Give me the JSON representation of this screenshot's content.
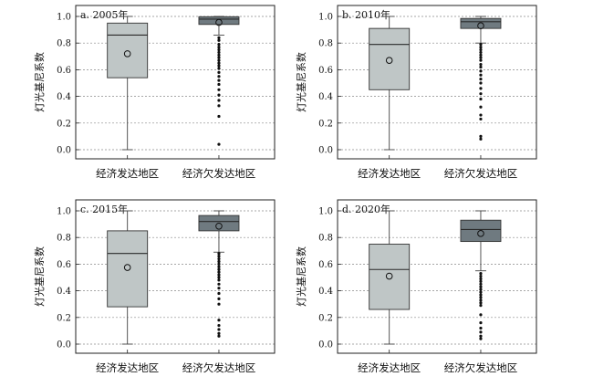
{
  "figure": {
    "ylabel": "灯光基尼系数",
    "categories": [
      "经济发达地区",
      "经济欠发达地区"
    ],
    "colors": {
      "developed": "#bfc6c6",
      "underdeveloped": "#6f7a80",
      "median_line": "#2a2a2a",
      "grid": "#8a8a8a"
    }
  },
  "chart_data": [
    {
      "type": "box",
      "title": "a. 2005年",
      "ylim": [
        0,
        1.0
      ],
      "yticks": [
        "0.0",
        "0.2",
        "0.4",
        "0.6",
        "0.8",
        "1.0"
      ],
      "grid": "horizontal-dashed",
      "categories": [
        "经济发达地区",
        "经济欠发达地区"
      ],
      "series": [
        {
          "whisker_low": 0.0,
          "q1": 0.54,
          "median": 0.86,
          "q3": 0.95,
          "whisker_high": 1.0,
          "mean": 0.72,
          "outliers": []
        },
        {
          "whisker_low": 0.86,
          "q1": 0.94,
          "median": 0.98,
          "q3": 0.998,
          "whisker_high": 1.0,
          "mean": 0.955,
          "outliers": [
            0.84,
            0.82,
            0.79,
            0.77,
            0.75,
            0.73,
            0.71,
            0.69,
            0.67,
            0.65,
            0.63,
            0.61,
            0.58,
            0.55,
            0.52,
            0.49,
            0.45,
            0.41,
            0.37,
            0.33,
            0.25,
            0.04
          ]
        }
      ]
    },
    {
      "type": "box",
      "title": "b. 2010年",
      "ylim": [
        0,
        1.0
      ],
      "yticks": [
        "0.0",
        "0.2",
        "0.4",
        "0.6",
        "0.8",
        "1.0"
      ],
      "grid": "horizontal-dashed",
      "categories": [
        "经济发达地区",
        "经济欠发达地区"
      ],
      "series": [
        {
          "whisker_low": 0.0,
          "q1": 0.45,
          "median": 0.79,
          "q3": 0.91,
          "whisker_high": 1.0,
          "mean": 0.67,
          "outliers": []
        },
        {
          "whisker_low": 0.8,
          "q1": 0.91,
          "median": 0.96,
          "q3": 0.985,
          "whisker_high": 1.0,
          "mean": 0.93,
          "outliers": [
            0.79,
            0.77,
            0.75,
            0.73,
            0.71,
            0.69,
            0.67,
            0.64,
            0.62,
            0.59,
            0.56,
            0.53,
            0.5,
            0.46,
            0.42,
            0.38,
            0.32,
            0.26,
            0.23,
            0.1,
            0.08
          ]
        }
      ]
    },
    {
      "type": "box",
      "title": "c. 2015年",
      "ylim": [
        0,
        1.0
      ],
      "yticks": [
        "0.0",
        "0.2",
        "0.4",
        "0.6",
        "0.8",
        "1.0"
      ],
      "grid": "horizontal-dashed",
      "categories": [
        "经济发达地区",
        "经济欠发达地区"
      ],
      "series": [
        {
          "whisker_low": 0.0,
          "q1": 0.28,
          "median": 0.68,
          "q3": 0.85,
          "whisker_high": 1.0,
          "mean": 0.575,
          "outliers": []
        },
        {
          "whisker_low": 0.69,
          "q1": 0.85,
          "median": 0.92,
          "q3": 0.965,
          "whisker_high": 1.0,
          "mean": 0.885,
          "outliers": [
            0.68,
            0.66,
            0.64,
            0.62,
            0.6,
            0.58,
            0.56,
            0.54,
            0.52,
            0.5,
            0.48,
            0.45,
            0.42,
            0.38,
            0.34,
            0.3,
            0.18,
            0.14,
            0.11,
            0.08,
            0.06
          ]
        }
      ]
    },
    {
      "type": "box",
      "title": "d. 2020年",
      "ylim": [
        0,
        1.0
      ],
      "yticks": [
        "0.0",
        "0.2",
        "0.4",
        "0.6",
        "0.8",
        "1.0"
      ],
      "grid": "horizontal-dashed",
      "categories": [
        "经济发达地区",
        "经济欠发达地区"
      ],
      "series": [
        {
          "whisker_low": 0.0,
          "q1": 0.26,
          "median": 0.56,
          "q3": 0.75,
          "whisker_high": 1.0,
          "mean": 0.51,
          "outliers": []
        },
        {
          "whisker_low": 0.55,
          "q1": 0.77,
          "median": 0.86,
          "q3": 0.93,
          "whisker_high": 1.0,
          "mean": 0.83,
          "outliers": [
            0.53,
            0.51,
            0.49,
            0.47,
            0.45,
            0.43,
            0.41,
            0.39,
            0.37,
            0.35,
            0.33,
            0.31,
            0.29,
            0.22,
            0.16,
            0.12,
            0.09,
            0.06,
            0.04
          ]
        }
      ]
    }
  ]
}
